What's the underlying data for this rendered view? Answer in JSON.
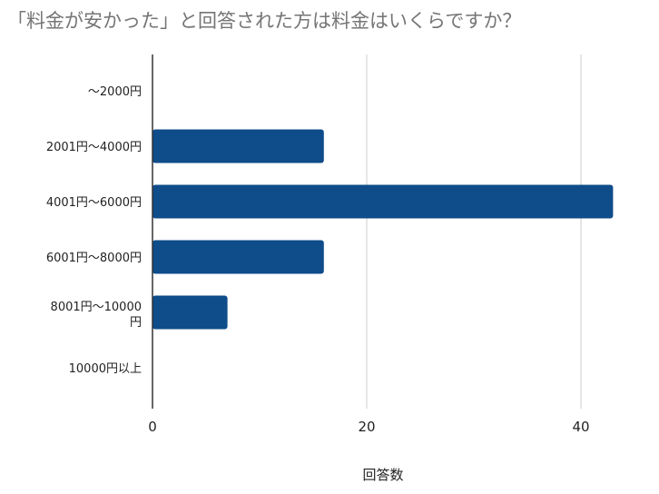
{
  "chart_data": {
    "type": "bar",
    "orientation": "horizontal",
    "title": "「料金が安かった」と回答された方は料金はいくらですか？",
    "xlabel": "回答数",
    "ylabel": "",
    "categories": [
      "〜2000円",
      "2001円〜4000円",
      "4001円〜6000円",
      "6001円〜8000円",
      "8001円〜10000円",
      "10000円以上"
    ],
    "values": [
      0,
      16,
      43,
      16,
      7,
      0
    ],
    "xlim": [
      0,
      45
    ],
    "xticks": [
      0,
      20,
      40
    ],
    "grid": true,
    "legend": "none",
    "bar_color": "#0f4c8a",
    "grid_color": "#cccccc",
    "axis_color": "#333333"
  }
}
